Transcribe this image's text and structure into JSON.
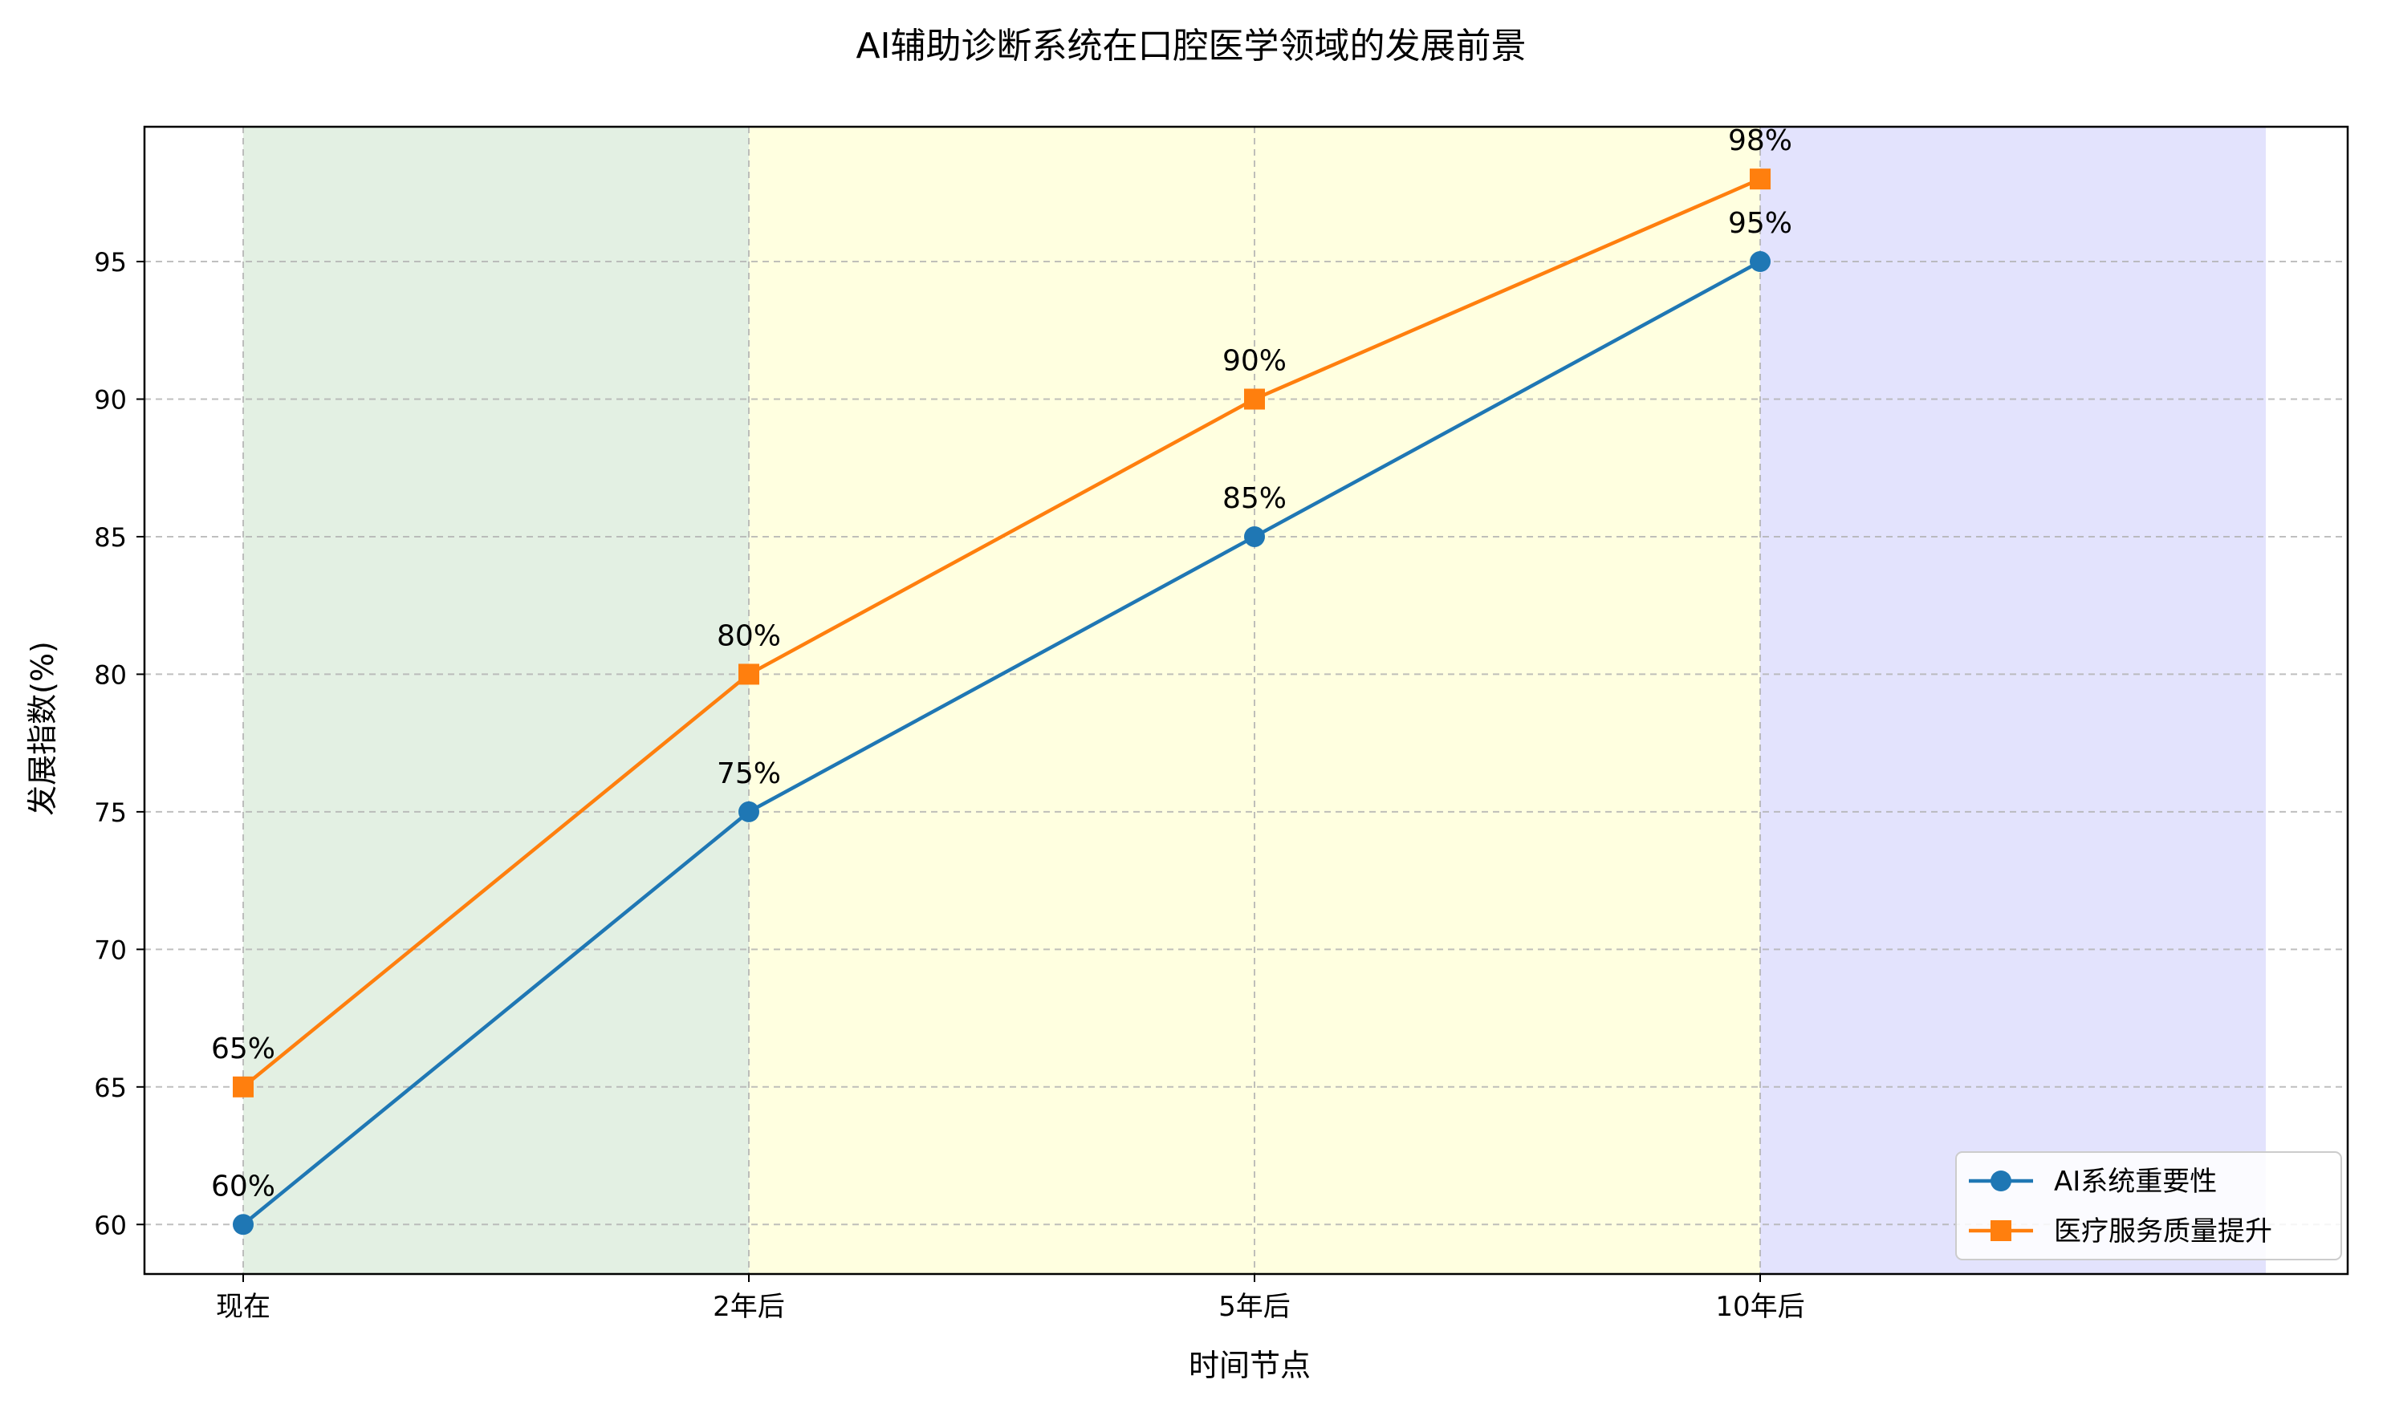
{
  "chart_data": {
    "type": "line",
    "title": "AI辅助诊断系统在口腔医学领域的发展前景",
    "xlabel": "时间节点",
    "ylabel": "发展指数(%)",
    "categories": [
      "现在",
      "2年后",
      "5年后",
      "10年后"
    ],
    "ylim": [
      58.2,
      99.9
    ],
    "yticks": [
      60,
      65,
      70,
      75,
      80,
      85,
      90,
      95
    ],
    "grid": true,
    "legend_position": "bottom-right",
    "series": [
      {
        "name": "AI系统重要性",
        "values": [
          60,
          75,
          85,
          95
        ],
        "labels": [
          "60%",
          "75%",
          "85%",
          "95%"
        ],
        "color": "#1f77b4",
        "marker": "circle"
      },
      {
        "name": "医疗服务质量提升",
        "values": [
          65,
          80,
          90,
          98
        ],
        "labels": [
          "65%",
          "80%",
          "90%",
          "98%"
        ],
        "color": "#ff7f0e",
        "marker": "square"
      }
    ],
    "background_bands": [
      {
        "from": 0,
        "to": 1,
        "color": "#e3f0e3"
      },
      {
        "from": 1,
        "to": 3,
        "color": "#ffffe0"
      },
      {
        "from": 3,
        "to": 4,
        "color": "#e3e3fd"
      }
    ]
  }
}
